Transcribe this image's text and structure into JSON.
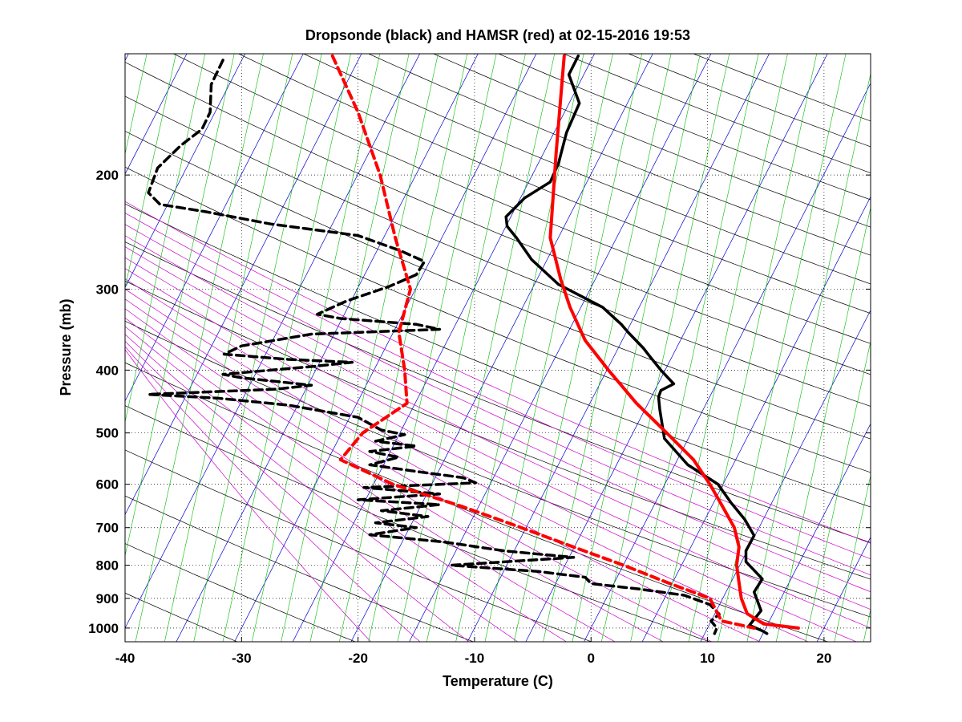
{
  "chart_data": {
    "type": "line",
    "title": "Dropsonde (black) and HAMSR (red) at 02-15-2016 19:53",
    "xlabel": "Temperature (C)",
    "ylabel": "Pressure (mb)",
    "x_scale": "linear",
    "y_scale": "log",
    "y_inverted": true,
    "xlim": [
      -40,
      24
    ],
    "ylim": [
      1050,
      130
    ],
    "xticks": [
      "-40",
      "-30",
      "-20",
      "-10",
      "0",
      "10",
      "20"
    ],
    "yticks": [
      "200",
      "300",
      "400",
      "500",
      "600",
      "700",
      "800",
      "900",
      "1000"
    ],
    "grid": "dotted",
    "background_lines": {
      "isotherms_color": "#0000cc",
      "dry_adiabats_color": "#000000",
      "moist_adiabats_color": "#cc00cc",
      "mixing_ratio_color": "#00bb00"
    },
    "series": [
      {
        "color": "#000000",
        "style": "solid",
        "points": [
          [
            -1.1,
            131
          ],
          [
            -1.9,
            140
          ],
          [
            -1.0,
            155
          ],
          [
            -2.1,
            172
          ],
          [
            -2.8,
            192
          ],
          [
            -3.5,
            205
          ],
          [
            -5.7,
            217
          ],
          [
            -7.3,
            232
          ],
          [
            -7.2,
            240
          ],
          [
            -6.4,
            250
          ],
          [
            -5.1,
            270
          ],
          [
            -2.8,
            295
          ],
          [
            1.0,
            320
          ],
          [
            2.6,
            340
          ],
          [
            3.2,
            350
          ],
          [
            4.5,
            370
          ],
          [
            5.0,
            380
          ],
          [
            6.0,
            400
          ],
          [
            7.1,
            420
          ],
          [
            6.0,
            430
          ],
          [
            5.8,
            440
          ],
          [
            5.9,
            460
          ],
          [
            6.3,
            510
          ],
          [
            8.3,
            560
          ],
          [
            10.9,
            600
          ],
          [
            12.0,
            640
          ],
          [
            13.2,
            680
          ],
          [
            14.0,
            720
          ],
          [
            13.3,
            760
          ],
          [
            13.3,
            790
          ],
          [
            14.7,
            840
          ],
          [
            14.0,
            880
          ],
          [
            14.6,
            940
          ],
          [
            13.6,
            990
          ],
          [
            14.7,
            1010
          ],
          [
            15.1,
            1020
          ]
        ]
      },
      {
        "color": "#000000",
        "style": "dashed",
        "points": [
          [
            -31.6,
            133
          ],
          [
            -32.6,
            145
          ],
          [
            -32.7,
            160
          ],
          [
            -33.4,
            170
          ],
          [
            -35.2,
            180
          ],
          [
            -37.2,
            195
          ],
          [
            -38.0,
            213
          ],
          [
            -37.0,
            222
          ],
          [
            -33.0,
            228
          ],
          [
            -27.5,
            238
          ],
          [
            -20.0,
            248
          ],
          [
            -16.3,
            262
          ],
          [
            -14.3,
            272
          ],
          [
            -15.0,
            285
          ],
          [
            -17.3,
            297
          ],
          [
            -21.0,
            313
          ],
          [
            -23.5,
            328
          ],
          [
            -21.5,
            333
          ],
          [
            -15.0,
            340
          ],
          [
            -13.0,
            346
          ],
          [
            -24.0,
            352
          ],
          [
            -30.0,
            367
          ],
          [
            -31.5,
            378
          ],
          [
            -26.0,
            385
          ],
          [
            -20.5,
            389
          ],
          [
            -24.0,
            395
          ],
          [
            -31.6,
            406
          ],
          [
            -30.0,
            411
          ],
          [
            -24.0,
            422
          ],
          [
            -27.0,
            428
          ],
          [
            -38.0,
            436
          ],
          [
            -32.0,
            442
          ],
          [
            -26.0,
            453
          ],
          [
            -20.0,
            473
          ],
          [
            -18.0,
            495
          ],
          [
            -16.0,
            503
          ],
          [
            -18.5,
            515
          ],
          [
            -15.0,
            524
          ],
          [
            -19.0,
            534
          ],
          [
            -16.5,
            545
          ],
          [
            -19.0,
            560
          ],
          [
            -14.5,
            575
          ],
          [
            -11.0,
            586
          ],
          [
            -9.9,
            597
          ],
          [
            -19.5,
            607
          ],
          [
            -13.0,
            621
          ],
          [
            -20.0,
            634
          ],
          [
            -13.0,
            645
          ],
          [
            -18.0,
            659
          ],
          [
            -14.0,
            673
          ],
          [
            -18.5,
            688
          ],
          [
            -15.0,
            700
          ],
          [
            -19.0,
            718
          ],
          [
            -12.5,
            737
          ],
          [
            -7.5,
            760
          ],
          [
            -1.5,
            778
          ],
          [
            -12.0,
            800
          ],
          [
            -4.5,
            818
          ],
          [
            -0.5,
            835
          ],
          [
            0.0,
            854
          ],
          [
            4.0,
            870
          ],
          [
            8.0,
            890
          ],
          [
            10.2,
            920
          ],
          [
            11.0,
            952
          ],
          [
            10.3,
            975
          ],
          [
            10.8,
            1000
          ],
          [
            10.6,
            1020
          ]
        ]
      },
      {
        "color": "#ff0000",
        "style": "solid",
        "points": [
          [
            -2.3,
            131
          ],
          [
            -3.0,
            185
          ],
          [
            -3.5,
            250
          ],
          [
            -2.6,
            290
          ],
          [
            -1.8,
            320
          ],
          [
            -0.5,
            360
          ],
          [
            1.5,
            400
          ],
          [
            3.9,
            450
          ],
          [
            6.5,
            500
          ],
          [
            8.8,
            550
          ],
          [
            10.2,
            600
          ],
          [
            11.3,
            650
          ],
          [
            12.3,
            700
          ],
          [
            12.7,
            750
          ],
          [
            12.5,
            800
          ],
          [
            12.7,
            850
          ],
          [
            12.9,
            900
          ],
          [
            13.4,
            950
          ],
          [
            14.8,
            985
          ],
          [
            17.8,
            1000
          ]
        ]
      },
      {
        "color": "#ff0000",
        "style": "dashed",
        "points": [
          [
            -22.2,
            131
          ],
          [
            -20.0,
            160
          ],
          [
            -18.1,
            200
          ],
          [
            -16.8,
            250
          ],
          [
            -15.5,
            300
          ],
          [
            -16.5,
            350
          ],
          [
            -16.0,
            400
          ],
          [
            -15.8,
            450
          ],
          [
            -19.6,
            500
          ],
          [
            -21.5,
            550
          ],
          [
            -17.0,
            600
          ],
          [
            -11.0,
            650
          ],
          [
            -6.0,
            700
          ],
          [
            -1.5,
            750
          ],
          [
            2.8,
            800
          ],
          [
            6.5,
            850
          ],
          [
            10.2,
            900
          ],
          [
            11.2,
            975
          ],
          [
            14.0,
            1000
          ]
        ]
      }
    ]
  }
}
